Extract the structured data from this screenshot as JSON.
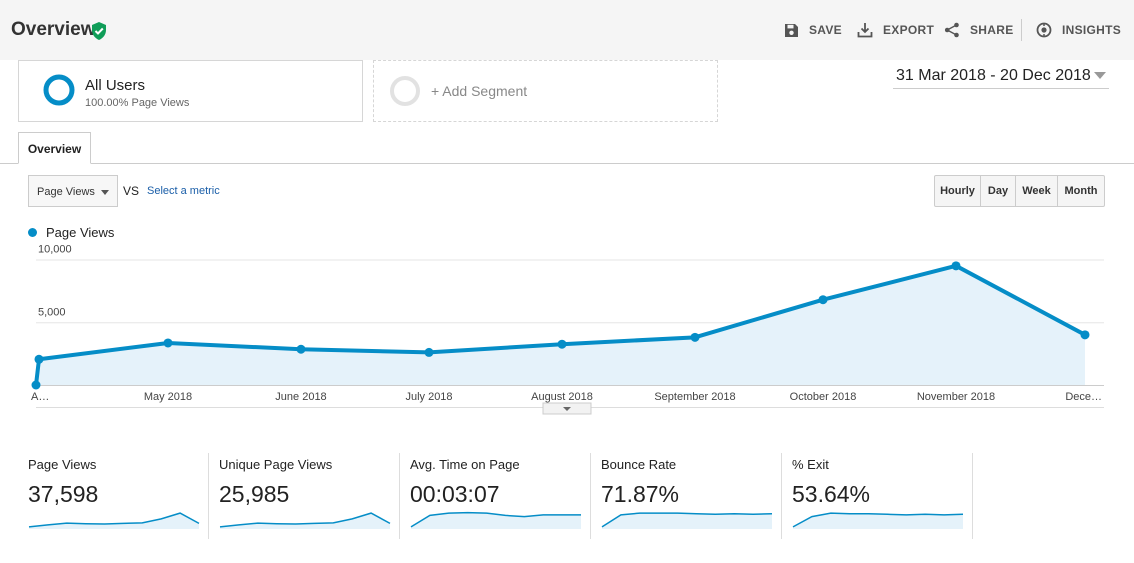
{
  "header": {
    "title": "Overview",
    "actions": [
      {
        "label": "SAVE",
        "icon": "save-icon"
      },
      {
        "label": "EXPORT",
        "icon": "export-icon"
      },
      {
        "label": "SHARE",
        "icon": "share-icon"
      },
      {
        "label": "INSIGHTS",
        "icon": "insights-icon"
      }
    ]
  },
  "segments": {
    "all_users": {
      "name": "All Users",
      "sub": "100.00% Page Views"
    },
    "add_segment": {
      "label": "+ Add Segment"
    }
  },
  "date_range": "31 Mar 2018 - 20 Dec 2018",
  "tabs": [
    {
      "label": "Overview"
    }
  ],
  "metric_picker": {
    "selected": "Page Views",
    "vs": "VS",
    "select_metric": "Select a metric"
  },
  "periods": [
    {
      "label": "Hourly",
      "active": false
    },
    {
      "label": "Day",
      "active": false
    },
    {
      "label": "Week",
      "active": false
    },
    {
      "label": "Month",
      "active": true
    }
  ],
  "colors": {
    "series": "#058dc7",
    "fill": "#e5f2fa",
    "accent_green": "#0f9d58"
  },
  "chart_data": {
    "type": "area",
    "series": [
      {
        "name": "Page Views",
        "values": [
          0,
          2050,
          3350,
          2850,
          2600,
          3250,
          3800,
          6800,
          9500,
          4000
        ]
      }
    ],
    "x": [
      "A…",
      "",
      "May 2018",
      "June 2018",
      "July 2018",
      "August 2018",
      "September 2018",
      "October 2018",
      "November 2018",
      "Dece…"
    ],
    "yticks": [
      "10,000",
      "5,000"
    ],
    "ytick_values": [
      10000,
      5000
    ],
    "ylim": [
      0,
      11000
    ],
    "grid": true,
    "legend": "top-left"
  },
  "scorecards": [
    {
      "label": "Page Views",
      "value": "37,598",
      "spark": [
        0.2,
        0.55,
        0.85,
        0.75,
        0.7,
        0.8,
        0.9,
        1.6,
        2.6,
        0.8
      ]
    },
    {
      "label": "Unique Page Views",
      "value": "25,985",
      "spark": [
        0.2,
        0.55,
        0.85,
        0.75,
        0.7,
        0.8,
        0.9,
        1.6,
        2.6,
        0.8
      ]
    },
    {
      "label": "Avg. Time on Page",
      "value": "00:03:07",
      "spark": [
        0.2,
        2.2,
        2.6,
        2.7,
        2.6,
        2.2,
        2.0,
        2.3,
        2.3,
        2.3
      ]
    },
    {
      "label": "Bounce Rate",
      "value": "71.87%",
      "spark": [
        0.2,
        2.3,
        2.6,
        2.6,
        2.6,
        2.5,
        2.4,
        2.5,
        2.4,
        2.5
      ]
    },
    {
      "label": "% Exit",
      "value": "53.64%",
      "spark": [
        0.2,
        2.0,
        2.6,
        2.5,
        2.5,
        2.4,
        2.3,
        2.4,
        2.3,
        2.4
      ]
    }
  ]
}
